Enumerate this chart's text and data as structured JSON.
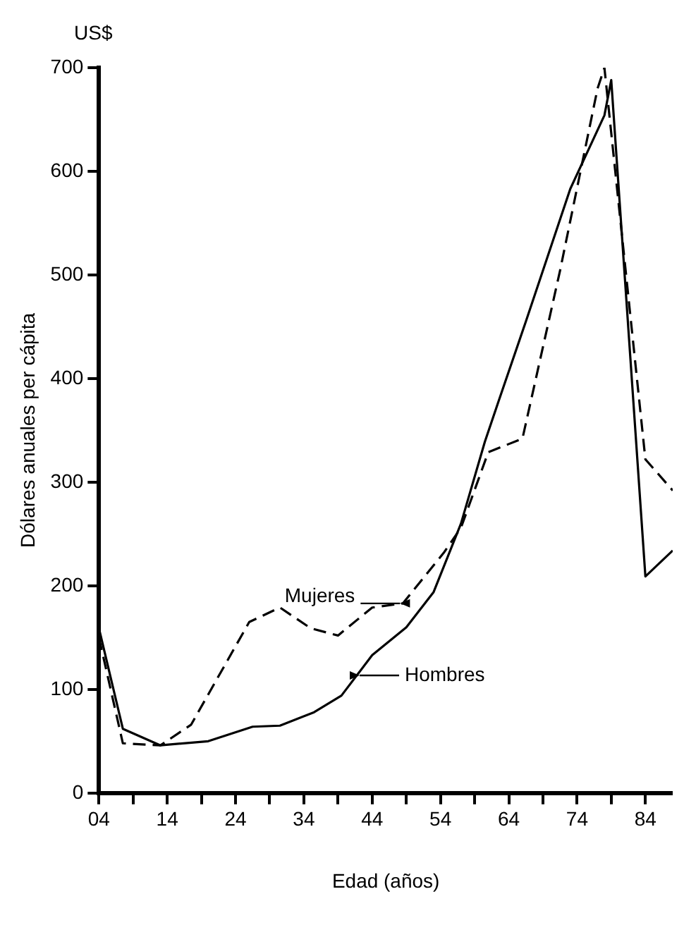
{
  "chart_data": {
    "type": "line",
    "xlabel": "Edad (años)",
    "ylabel": "Dólares anuales per cápita",
    "annotations": [
      "US$"
    ],
    "xlim": [
      4,
      88
    ],
    "ylim": [
      0,
      700
    ],
    "xticks": [
      {
        "value": 4,
        "label": "04"
      },
      {
        "value": 9,
        "label": null
      },
      {
        "value": 14,
        "label": "14"
      },
      {
        "value": 19,
        "label": null
      },
      {
        "value": 24,
        "label": "24"
      },
      {
        "value": 29,
        "label": null
      },
      {
        "value": 34,
        "label": "34"
      },
      {
        "value": 39,
        "label": null
      },
      {
        "value": 44,
        "label": "44"
      },
      {
        "value": 49,
        "label": null
      },
      {
        "value": 54,
        "label": "54"
      },
      {
        "value": 59,
        "label": null
      },
      {
        "value": 64,
        "label": "64"
      },
      {
        "value": 69,
        "label": null
      },
      {
        "value": 74,
        "label": "74"
      },
      {
        "value": 79,
        "label": null
      },
      {
        "value": 84,
        "label": "84"
      }
    ],
    "yticks": [
      0,
      100,
      200,
      300,
      400,
      500,
      600,
      700
    ],
    "grid": false,
    "legend": "bottom",
    "marker": "none",
    "series": [
      {
        "name": "Mujeres",
        "color": "#000000",
        "line_style": "dashed",
        "x": [
          4,
          7.5,
          13,
          17.5,
          26,
          30.5,
          35,
          39,
          44,
          48.5,
          54.5,
          57,
          61,
          66,
          71.5,
          77,
          78,
          84,
          88
        ],
        "values": [
          150,
          48,
          46,
          66,
          165,
          179,
          159,
          152,
          179,
          183,
          232,
          256,
          329,
          342,
          504,
          680,
          700,
          322,
          292
        ]
      },
      {
        "name": "Hombres",
        "color": "#000000",
        "line_style": "solid",
        "x": [
          4,
          7.5,
          13,
          20,
          26.5,
          30.5,
          35.5,
          39.5,
          44,
          49,
          53,
          57,
          60.5,
          62.5,
          66.5,
          73,
          78,
          79,
          84,
          88
        ],
        "values": [
          159,
          62,
          46,
          50,
          64,
          65,
          78,
          94,
          133,
          160,
          194,
          260,
          339,
          378,
          455,
          583,
          654,
          688,
          209,
          234
        ]
      }
    ]
  }
}
